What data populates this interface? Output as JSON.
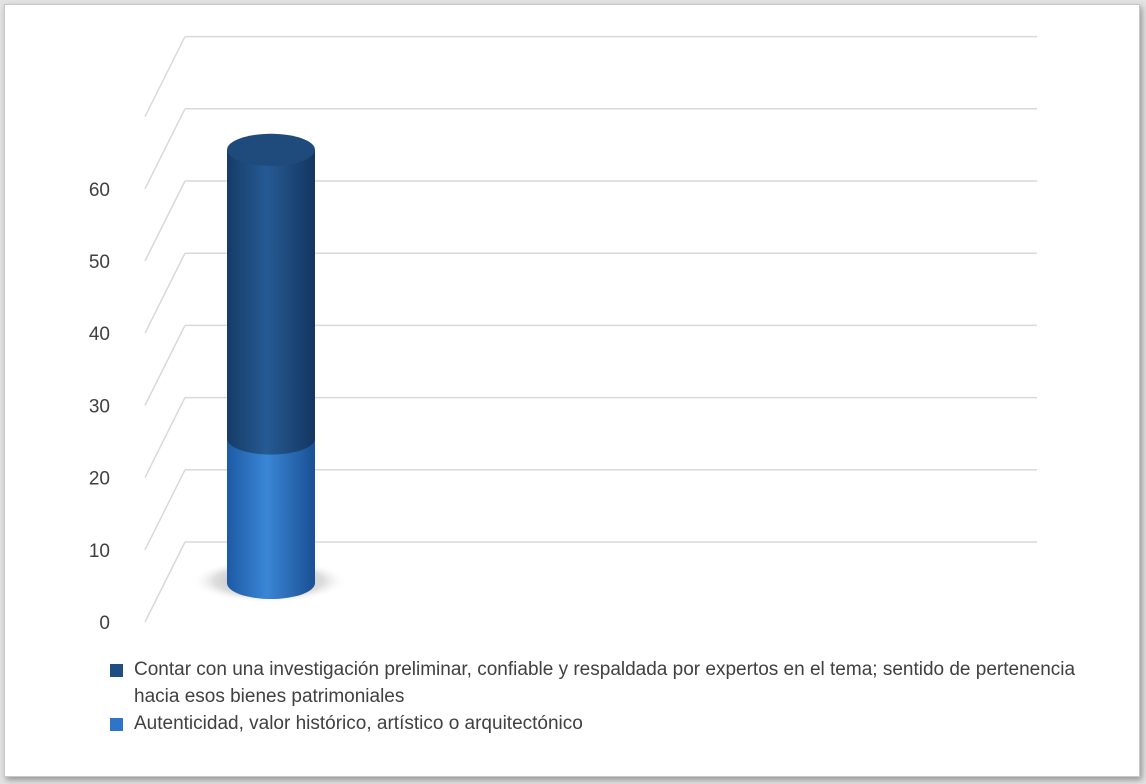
{
  "chart_data": {
    "type": "bar",
    "style": "3d-cylinder-stacked",
    "categories": [
      ""
    ],
    "series": [
      {
        "name": "Autenticidad, valor histórico, artístico o arquitectónico",
        "values": [
          20
        ],
        "color": "#2e75c9"
      },
      {
        "name": "Contar con una investigación preliminar, confiable y respaldada por expertos en el tema; sentido de pertenencia hacia esos bienes patrimoniales",
        "values": [
          40
        ],
        "color": "#1f4e82"
      }
    ],
    "yticks": [
      "0",
      "10",
      "20",
      "30",
      "40",
      "50",
      "60"
    ],
    "ylim": [
      0,
      70
    ],
    "grid": true,
    "legend_position": "bottom"
  },
  "legend": [
    {
      "label": "Contar con una investigación preliminar, confiable y respaldada por expertos en el tema; sentido de pertenencia hacia esos bienes patrimoniales",
      "color": "#1f4e82"
    },
    {
      "label": "Autenticidad, valor histórico, artístico o arquitectónico",
      "color": "#2e75c9"
    }
  ]
}
